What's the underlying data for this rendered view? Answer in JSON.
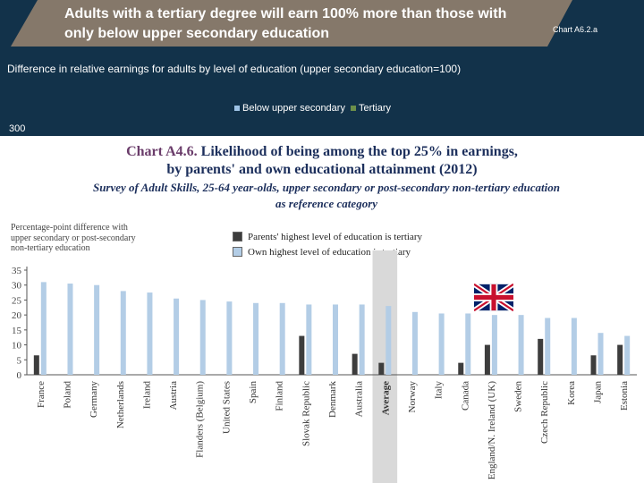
{
  "slide": {
    "title": "Adults with a tertiary degree will earn 100% more than those with only below upper secondary education",
    "chart_tag": "Chart A6.2.a",
    "subtitle": "Difference in relative earnings for adults by level of education (upper secondary education=100)",
    "legend": [
      "Below upper secondary",
      "Tertiary"
    ],
    "ytick": "300"
  },
  "colors": {
    "slide_bg": "#12324a",
    "banner": "#85786a",
    "parents": "#3d3d3d",
    "own": "#b3cde6",
    "highlight": "#d9d9d9"
  },
  "chart_data": {
    "type": "bar",
    "title": "Chart A4.6.",
    "title_rest_line1": "Likelihood of being among the top 25% in earnings,",
    "title_line2": "by parents' and own educational attainment (2012)",
    "subtitle_line1": "Survey of Adult Skills, 25-64 year-olds, upper secondary or post-secondary non-tertiary education",
    "subtitle_line2": "as reference category",
    "ylabel": "Percentage-point difference with upper secondary or post-secondary non-tertiary education",
    "ylim": [
      0,
      35
    ],
    "yticks": [
      0,
      5,
      10,
      15,
      20,
      25,
      30,
      35
    ],
    "grid": false,
    "highlight_category": "Average",
    "categories": [
      "France",
      "Poland",
      "Germany",
      "Netherlands",
      "Ireland",
      "Austria",
      "Flanders (Belgium)",
      "United States",
      "Spain",
      "Finland",
      "Slovak Republic",
      "Denmark",
      "Australia",
      "Average",
      "Norway",
      "Italy",
      "Canada",
      "England/N. Ireland (UK)",
      "Sweden",
      "Czech Republic",
      "Korea",
      "Japan",
      "Estonia"
    ],
    "series": [
      {
        "name": "Parents' highest level of education is tertiary",
        "values": [
          6.5,
          null,
          null,
          null,
          null,
          null,
          null,
          null,
          null,
          null,
          13,
          null,
          7,
          4,
          null,
          null,
          4,
          10,
          null,
          12,
          null,
          6.5,
          10
        ]
      },
      {
        "name": "Own highest level of education is tertiary",
        "values": [
          31,
          30.5,
          30,
          28,
          27.5,
          25.5,
          25,
          24.5,
          24,
          24,
          23.5,
          23.5,
          23.5,
          23,
          21,
          20.5,
          20.5,
          20,
          20,
          19,
          19,
          14,
          13
        ]
      }
    ]
  }
}
